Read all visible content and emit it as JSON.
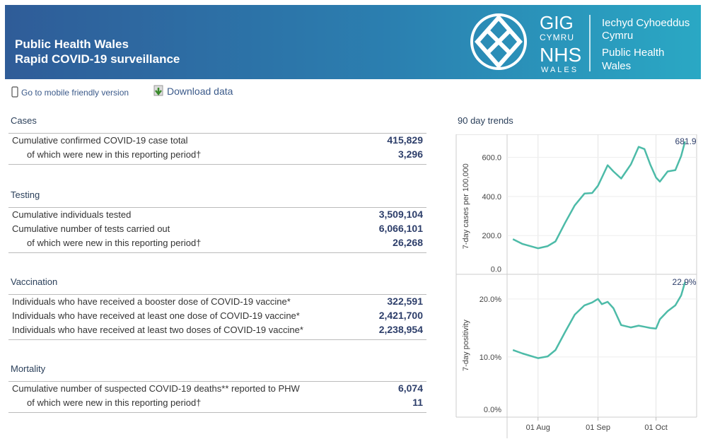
{
  "header": {
    "title_line1": "Public Health Wales",
    "title_line2": "Rapid COVID-19 surveillance",
    "logo_gig": "GIG",
    "logo_cymru": "CYMRU",
    "logo_nhs": "NHS",
    "logo_wales": "WALES",
    "org_welsh_1": "Iechyd Cyhoeddus",
    "org_welsh_2": "Cymru",
    "org_english_1": "Public Health",
    "org_english_2": "Wales"
  },
  "links": {
    "mobile": "Go to mobile friendly version",
    "download": "Download data"
  },
  "sections": [
    {
      "title": "Cases",
      "rows": [
        {
          "label": "Cumulative confirmed COVID-19 case total",
          "value": "415,829",
          "indent": false
        },
        {
          "label": "of which were new in this reporting period†",
          "value": "3,296",
          "indent": true
        }
      ]
    },
    {
      "title": "Testing",
      "rows": [
        {
          "label": "Cumulative individuals tested",
          "value": "3,509,104",
          "indent": false
        },
        {
          "label": "Cumulative number of tests carried out",
          "value": "6,066,101",
          "indent": false
        },
        {
          "label": "of which were new in this reporting period†",
          "value": "26,268",
          "indent": true
        }
      ]
    },
    {
      "title": "Vaccination",
      "rows": [
        {
          "label": "Individuals who have received a booster dose of COVID-19 vaccine*",
          "value": "322,591",
          "indent": false
        },
        {
          "label": "Individuals who have received at least one dose of COVID-19 vaccine*",
          "value": "2,421,700",
          "indent": false
        },
        {
          "label": "Individuals who have received at least two doses of COVID-19 vaccine*",
          "value": "2,238,954",
          "indent": false
        }
      ]
    },
    {
      "title": "Mortality",
      "rows": [
        {
          "label": "Cumulative number of suspected COVID-19 deaths** reported to PHW",
          "value": "6,074",
          "indent": false
        },
        {
          "label": "of which were new in this reporting period†",
          "value": "11",
          "indent": true
        }
      ]
    }
  ],
  "trends_title": "90 day trends",
  "chart_data": [
    {
      "type": "line",
      "y_label": "7-day cases per 100,000",
      "x": [
        "19 Jul",
        "24 Jul",
        "01 Aug",
        "06 Aug",
        "10 Aug",
        "15 Aug",
        "20 Aug",
        "25 Aug",
        "29 Aug",
        "01 Sep",
        "03 Sep",
        "06 Sep",
        "09 Sep",
        "13 Sep",
        "18 Sep",
        "22 Sep",
        "25 Sep",
        "28 Sep",
        "01 Oct",
        "03 Oct",
        "07 Oct",
        "11 Oct",
        "14 Oct",
        "16 Oct"
      ],
      "series": [
        {
          "name": "7-day cases per 100,000",
          "color": "#4dbba8",
          "values": [
            182,
            157,
            135,
            146,
            170,
            265,
            355,
            415,
            418,
            455,
            497,
            560,
            528,
            492,
            564,
            654,
            643,
            564,
            497,
            476,
            528,
            535,
            607,
            681.9
          ],
          "value_labels": [
            null,
            null,
            null,
            null,
            null,
            null,
            null,
            null,
            null,
            null,
            null,
            null,
            null,
            null,
            null,
            null,
            null,
            null,
            null,
            null,
            null,
            null,
            null,
            "681.9"
          ]
        }
      ],
      "xlim": [
        "16 Jul",
        "22 Oct"
      ],
      "xticks": [
        "01 Aug",
        "01 Sep",
        "01 Oct"
      ],
      "ylim": [
        0,
        700
      ],
      "yticks": [
        {
          "value": 0,
          "label": "0.0"
        },
        {
          "value": 200,
          "label": "200.0"
        },
        {
          "value": 400,
          "label": "400.0"
        },
        {
          "value": 600,
          "label": "600.0"
        }
      ],
      "grid": true
    },
    {
      "type": "line",
      "y_label": "7-day positivity",
      "x": [
        "19 Jul",
        "24 Jul",
        "01 Aug",
        "06 Aug",
        "10 Aug",
        "15 Aug",
        "20 Aug",
        "25 Aug",
        "29 Aug",
        "01 Sep",
        "03 Sep",
        "06 Sep",
        "09 Sep",
        "13 Sep",
        "18 Sep",
        "22 Sep",
        "25 Sep",
        "28 Sep",
        "01 Oct",
        "03 Oct",
        "07 Oct",
        "11 Oct",
        "14 Oct",
        "16 Oct"
      ],
      "series": [
        {
          "name": "7-day positivity",
          "color": "#4dbba8",
          "values": [
            11.2,
            10.6,
            9.8,
            10.1,
            11.2,
            14.3,
            17.3,
            18.9,
            19.4,
            20.0,
            19.1,
            19.5,
            18.4,
            15.5,
            15.1,
            15.4,
            15.2,
            15.0,
            14.9,
            16.5,
            17.9,
            18.9,
            20.6,
            22.9
          ],
          "value_labels": [
            null,
            null,
            null,
            null,
            null,
            null,
            null,
            null,
            null,
            null,
            null,
            null,
            null,
            null,
            null,
            null,
            null,
            null,
            null,
            null,
            null,
            null,
            null,
            "22.9%"
          ]
        }
      ],
      "xlim": [
        "16 Jul",
        "22 Oct"
      ],
      "xticks": [
        "01 Aug",
        "01 Sep",
        "01 Oct"
      ],
      "ylim": [
        0,
        24
      ],
      "yticks": [
        {
          "value": 0,
          "label": "0.0%"
        },
        {
          "value": 10,
          "label": "10.0%"
        },
        {
          "value": 20,
          "label": "20.0%"
        }
      ],
      "grid": true
    }
  ]
}
